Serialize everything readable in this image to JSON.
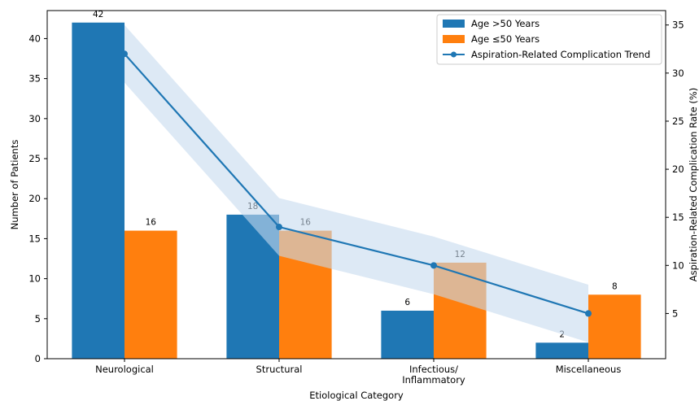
{
  "chart_data": {
    "type": "bar",
    "xlabel": "Etiological Category",
    "ylabel": "Number of Patients",
    "y2label": "Aspiration-Related Complication Rate (%)",
    "categories": [
      [
        "Neurological"
      ],
      [
        "Structural"
      ],
      [
        "Infectious/",
        "Inflammatory"
      ],
      [
        "Miscellaneous"
      ]
    ],
    "series": [
      {
        "name": "Age >50 Years",
        "type": "bar",
        "axis": "left",
        "color": "#1f77b4",
        "values": [
          42,
          18,
          6,
          2
        ]
      },
      {
        "name": "Age ≤50 Years",
        "type": "bar",
        "axis": "left",
        "color": "#ff7f0e",
        "values": [
          16,
          16,
          12,
          8
        ]
      },
      {
        "name": "Aspiration-Related Complication Trend",
        "type": "line",
        "axis": "right",
        "color": "#1f77b4",
        "marker": "circle",
        "values": [
          32,
          14,
          10,
          5
        ],
        "band": {
          "upper": [
            35,
            17,
            13,
            8
          ],
          "lower": [
            29,
            11,
            7,
            2
          ],
          "color": "#c6dbef"
        }
      }
    ],
    "ylim": [
      0,
      43.5
    ],
    "yticks": [
      0,
      5,
      10,
      15,
      20,
      25,
      30,
      35,
      40
    ],
    "y2lim": [
      0.3,
      36.5
    ],
    "y2ticks": [
      5,
      10,
      15,
      20,
      25,
      30,
      35
    ],
    "grid": false,
    "legend_position": "top-right"
  }
}
